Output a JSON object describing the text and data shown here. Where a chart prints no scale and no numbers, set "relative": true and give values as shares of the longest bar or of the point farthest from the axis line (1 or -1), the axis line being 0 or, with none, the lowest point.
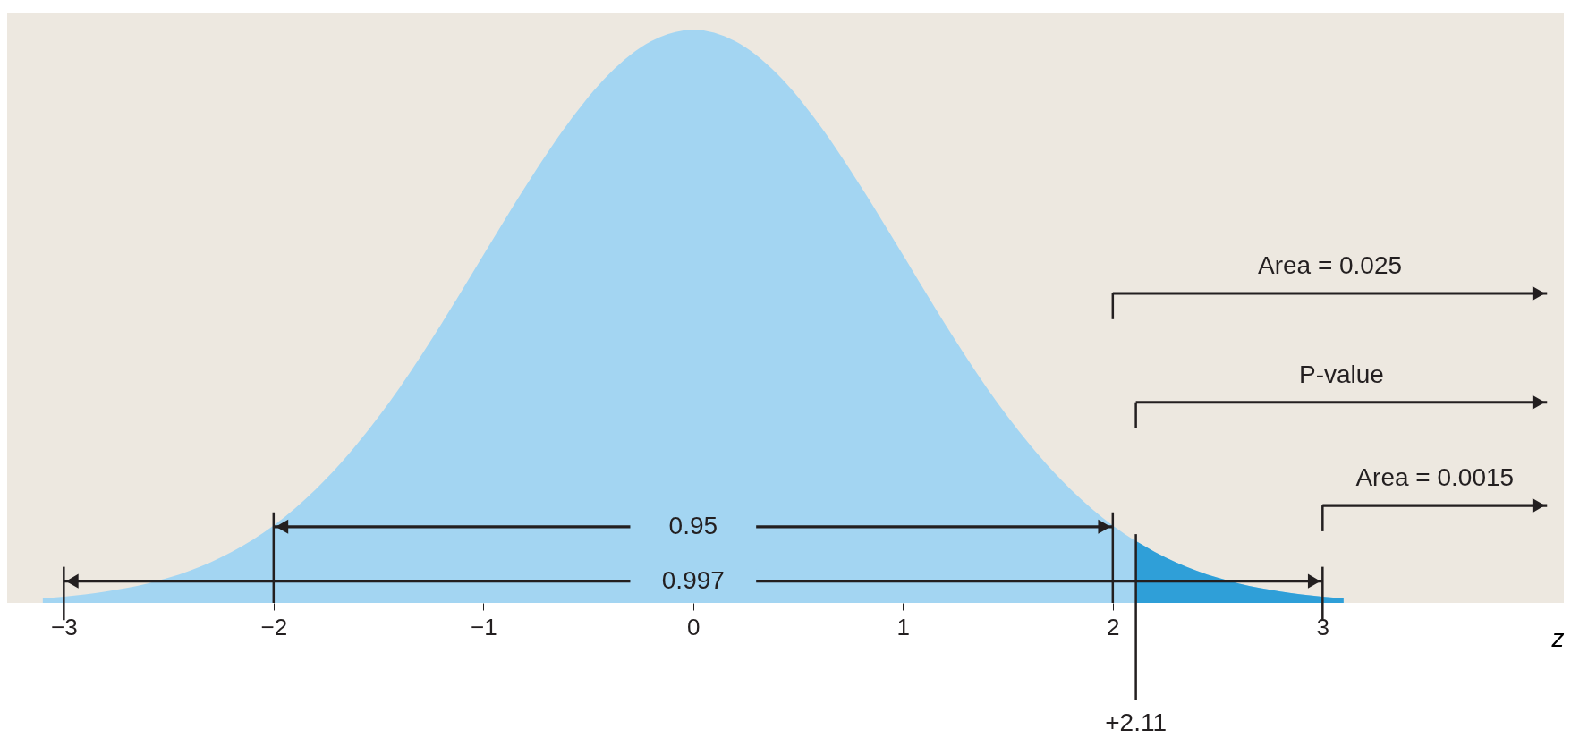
{
  "chart_data": {
    "type": "area",
    "xlabel": "z",
    "relative": true,
    "xlim": [
      -3.27,
      4.15
    ],
    "xticks": [
      -3,
      -2,
      -1,
      0,
      1,
      2,
      3
    ],
    "series": [
      {
        "color": "#a3d5f2",
        "x": [
          -3.1,
          -3.0,
          -2.8,
          -2.6,
          -2.4,
          -2.2,
          -2.0,
          -1.8,
          -1.6,
          -1.4,
          -1.2,
          -1.0,
          -0.8,
          -0.6,
          -0.4,
          -0.2,
          0,
          0.2,
          0.4,
          0.6,
          0.8,
          1.0,
          1.2,
          1.4,
          1.6,
          1.8,
          2.0,
          2.2,
          2.4,
          2.6,
          2.8,
          3.0,
          3.1
        ],
        "values": [
          0.008,
          0.011,
          0.02,
          0.034,
          0.056,
          0.089,
          0.135,
          0.198,
          0.278,
          0.375,
          0.487,
          0.607,
          0.726,
          0.835,
          0.923,
          0.98,
          1,
          0.98,
          0.923,
          0.835,
          0.726,
          0.607,
          0.487,
          0.375,
          0.278,
          0.198,
          0.135,
          0.089,
          0.056,
          0.034,
          0.02,
          0.011,
          0.008
        ]
      },
      {
        "color": "#2f9fd8",
        "x": [
          2.11,
          2.2,
          2.4,
          2.6,
          2.8,
          3.0,
          3.1
        ],
        "values": [
          0.108,
          0.089,
          0.056,
          0.034,
          0.02,
          0.011,
          0.008
        ]
      }
    ],
    "annotations": [
      "0.95",
      "0.997",
      "Area = 0.025",
      "P-value",
      "Area = 0.0015"
    ],
    "ref_lines": [
      {
        "axis": "x",
        "value": 2.11,
        "label": "+2.11",
        "color": "#231f20"
      }
    ]
  }
}
